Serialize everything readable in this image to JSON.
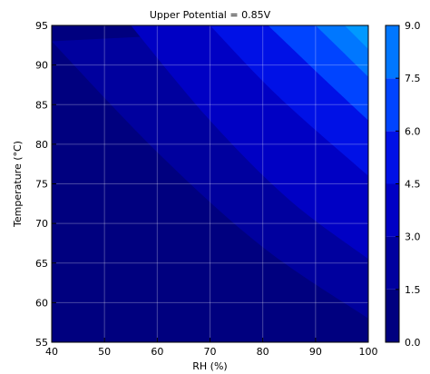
{
  "chart_data": {
    "type": "heatmap",
    "subtype": "filled-contour",
    "title": "Upper Potential = 0.85V",
    "xlabel": "RH (%)",
    "ylabel": "Temperature (°C)",
    "xlim": [
      40,
      100
    ],
    "ylim": [
      55,
      95
    ],
    "x_ticks": [
      "40",
      "50",
      "60",
      "70",
      "80",
      "90",
      "100"
    ],
    "y_ticks": [
      "55",
      "60",
      "65",
      "70",
      "75",
      "80",
      "85",
      "90",
      "95"
    ],
    "grid": true,
    "colorbar": {
      "range": [
        0.0,
        9.0
      ],
      "tick_labels": [
        "9.0",
        "7.5",
        "6.0",
        "4.5",
        "3.0",
        "1.5",
        "0.0"
      ],
      "levels": [
        0.0,
        1.5,
        3.0,
        4.5,
        6.0,
        7.5,
        9.0
      ],
      "band_colors": [
        "#00007f",
        "#00009e",
        "#0000c4",
        "#0011e6",
        "#0044ff",
        "#0077ff",
        "#0099ff"
      ]
    },
    "contour_boundaries": [
      {
        "level": 1.5,
        "points": [
          [
            40,
            93
          ],
          [
            60,
            79
          ],
          [
            80,
            67
          ],
          [
            100,
            58
          ]
        ]
      },
      {
        "level": 3.0,
        "points": [
          [
            55,
            95
          ],
          [
            70,
            83
          ],
          [
            85,
            73
          ],
          [
            100,
            65.5
          ]
        ]
      },
      {
        "level": 4.5,
        "points": [
          [
            70,
            95
          ],
          [
            83,
            86
          ],
          [
            100,
            76
          ]
        ]
      },
      {
        "level": 6.0,
        "points": [
          [
            81,
            95
          ],
          [
            92,
            88
          ],
          [
            100,
            83
          ]
        ]
      },
      {
        "level": 7.5,
        "points": [
          [
            90,
            95
          ],
          [
            100,
            88.5
          ]
        ]
      },
      {
        "level": 9.0,
        "points": [
          [
            95.5,
            95
          ],
          [
            100,
            92
          ]
        ]
      }
    ]
  }
}
